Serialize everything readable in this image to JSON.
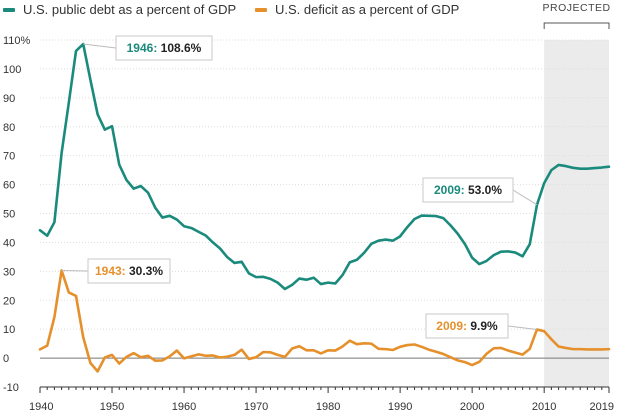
{
  "legend": {
    "debt_label": "U.S. public debt as a percent of GDP",
    "deficit_label": "U.S. deficit as a percent of GDP"
  },
  "colors": {
    "debt": "#1a8a7c",
    "deficit": "#e5902b",
    "projected_shade": "#ebebeb",
    "gridline": "#dddddd",
    "axis": "#333333"
  },
  "projected_label": "PROJECTED",
  "chart_data": {
    "type": "line",
    "x_ticks": [
      1940,
      1950,
      1960,
      1970,
      1980,
      1990,
      2000,
      2010,
      2019
    ],
    "y_ticks": [
      "110%",
      "100",
      "90",
      "80",
      "70",
      "60",
      "50",
      "40",
      "30",
      "20",
      "10",
      "0",
      "-10"
    ],
    "y_tick_values": [
      110,
      100,
      90,
      80,
      70,
      60,
      50,
      40,
      30,
      20,
      10,
      0,
      -10
    ],
    "xlim": [
      1940,
      2019
    ],
    "ylim": [
      -10,
      110
    ],
    "projected_range": [
      2010,
      2019
    ],
    "grid": true,
    "legend_position": "top",
    "series": [
      {
        "name": "U.S. public debt as a percent of GDP",
        "x": [
          1940,
          1941,
          1942,
          1943,
          1944,
          1945,
          1946,
          1947,
          1948,
          1949,
          1950,
          1951,
          1952,
          1953,
          1954,
          1955,
          1956,
          1957,
          1958,
          1959,
          1960,
          1961,
          1962,
          1963,
          1964,
          1965,
          1966,
          1967,
          1968,
          1969,
          1970,
          1971,
          1972,
          1973,
          1974,
          1975,
          1976,
          1977,
          1978,
          1979,
          1980,
          1981,
          1982,
          1983,
          1984,
          1985,
          1986,
          1987,
          1988,
          1989,
          1990,
          1991,
          1992,
          1993,
          1994,
          1995,
          1996,
          1997,
          1998,
          1999,
          2000,
          2001,
          2002,
          2003,
          2004,
          2005,
          2006,
          2007,
          2008,
          2009,
          2010,
          2011,
          2012,
          2013,
          2014,
          2015,
          2016,
          2017,
          2018,
          2019
        ],
        "values": [
          44.2,
          42.3,
          47.0,
          70.9,
          88.3,
          106.2,
          108.6,
          96.2,
          84.3,
          79.0,
          80.2,
          66.9,
          61.6,
          58.6,
          59.5,
          57.2,
          52.0,
          48.6,
          49.2,
          47.9,
          45.6,
          45.0,
          43.7,
          42.4,
          40.0,
          37.9,
          34.9,
          32.9,
          33.3,
          29.3,
          28.0,
          28.1,
          27.4,
          26.1,
          23.9,
          25.3,
          27.5,
          27.1,
          27.8,
          25.6,
          26.1,
          25.8,
          28.7,
          33.1,
          34.0,
          36.4,
          39.5,
          40.6,
          41.0,
          40.6,
          42.1,
          45.3,
          48.1,
          49.3,
          49.2,
          49.1,
          48.4,
          45.9,
          43.0,
          39.4,
          34.7,
          32.5,
          33.6,
          35.6,
          36.8,
          36.9,
          36.5,
          35.2,
          39.4,
          53.0,
          60.5,
          65.0,
          66.8,
          66.4,
          65.8,
          65.5,
          65.5,
          65.7,
          65.9,
          66.2
        ]
      },
      {
        "name": "U.S. deficit as a percent of GDP",
        "x": [
          1940,
          1941,
          1942,
          1943,
          1944,
          1945,
          1946,
          1947,
          1948,
          1949,
          1950,
          1951,
          1952,
          1953,
          1954,
          1955,
          1956,
          1957,
          1958,
          1959,
          1960,
          1961,
          1962,
          1963,
          1964,
          1965,
          1966,
          1967,
          1968,
          1969,
          1970,
          1971,
          1972,
          1973,
          1974,
          1975,
          1976,
          1977,
          1978,
          1979,
          1980,
          1981,
          1982,
          1983,
          1984,
          1985,
          1986,
          1987,
          1988,
          1989,
          1990,
          1991,
          1992,
          1993,
          1994,
          1995,
          1996,
          1997,
          1998,
          1999,
          2000,
          2001,
          2002,
          2003,
          2004,
          2005,
          2006,
          2007,
          2008,
          2009,
          2010,
          2011,
          2012,
          2013,
          2014,
          2015,
          2016,
          2017,
          2018,
          2019
        ],
        "values": [
          3.0,
          4.3,
          14.2,
          30.3,
          22.7,
          21.5,
          7.2,
          -1.7,
          -4.6,
          0.2,
          1.1,
          -1.9,
          0.4,
          1.7,
          0.3,
          0.8,
          -0.9,
          -0.8,
          0.6,
          2.6,
          -0.1,
          0.6,
          1.3,
          0.8,
          0.9,
          0.2,
          0.5,
          1.1,
          2.9,
          -0.3,
          0.3,
          2.1,
          2.0,
          1.1,
          0.4,
          3.3,
          4.1,
          2.7,
          2.7,
          1.6,
          2.7,
          2.6,
          4.0,
          6.0,
          4.8,
          5.1,
          5.0,
          3.2,
          3.1,
          2.8,
          3.9,
          4.5,
          4.7,
          3.9,
          2.9,
          2.2,
          1.4,
          0.3,
          -0.8,
          -1.4,
          -2.4,
          -1.3,
          1.5,
          3.4,
          3.5,
          2.6,
          1.9,
          1.2,
          3.2,
          9.9,
          9.3,
          6.5,
          4.0,
          3.5,
          3.1,
          3.1,
          3.0,
          3.0,
          3.0,
          3.1
        ]
      }
    ],
    "annotations": [
      {
        "series": 0,
        "x": 1946,
        "year": "1946:",
        "value": "108.6%"
      },
      {
        "series": 0,
        "x": 2009,
        "year": "2009:",
        "value": "53.0%"
      },
      {
        "series": 1,
        "x": 1943,
        "year": "1943:",
        "value": "30.3%"
      },
      {
        "series": 1,
        "x": 2009,
        "year": "2009:",
        "value": "9.9%"
      }
    ]
  }
}
